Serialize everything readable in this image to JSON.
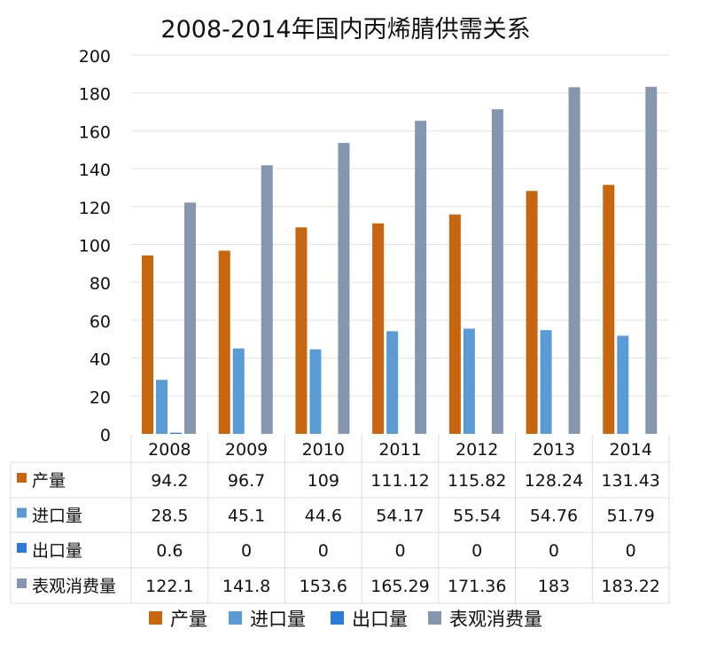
{
  "chart_data": {
    "type": "bar",
    "title": "2008-2014年国内丙烯腈供需关系",
    "categories": [
      "2008",
      "2009",
      "2010",
      "2011",
      "2012",
      "2013",
      "2014"
    ],
    "series": [
      {
        "name": "产量",
        "color": "#C8650F",
        "values": [
          94.2,
          96.7,
          109,
          111.12,
          115.82,
          128.24,
          131.43
        ],
        "labels": [
          "94.2",
          "96.7",
          "109",
          "111.12",
          "115.82",
          "128.24",
          "131.43"
        ]
      },
      {
        "name": "进口量",
        "color": "#5B9BD5",
        "values": [
          28.5,
          45.1,
          44.6,
          54.17,
          55.54,
          54.76,
          51.79
        ],
        "labels": [
          "28.5",
          "45.1",
          "44.6",
          "54.17",
          "55.54",
          "54.76",
          "51.79"
        ]
      },
      {
        "name": "出口量",
        "color": "#2E7AD8",
        "values": [
          0.6,
          0,
          0,
          0,
          0,
          0,
          0
        ],
        "labels": [
          "0.6",
          "0",
          "0",
          "0",
          "0",
          "0",
          "0"
        ]
      },
      {
        "name": "表观消费量",
        "color": "#8496B0",
        "values": [
          122.1,
          141.8,
          153.6,
          165.29,
          171.36,
          183,
          183.22
        ],
        "labels": [
          "122.1",
          "141.8",
          "153.6",
          "165.29",
          "171.36",
          "183",
          "183.22"
        ]
      }
    ],
    "yticks": [
      "0",
      "20",
      "40",
      "60",
      "80",
      "100",
      "120",
      "140",
      "160",
      "180",
      "200"
    ],
    "ylim": [
      0,
      200
    ],
    "grid": true,
    "legend": "bottom",
    "data_table": true
  }
}
